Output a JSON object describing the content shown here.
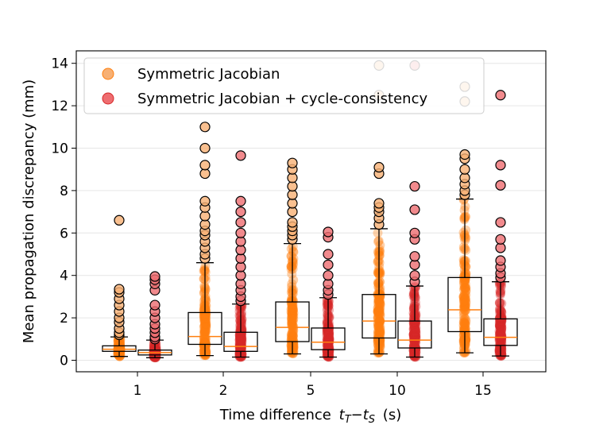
{
  "chart_data": {
    "type": "box",
    "title": "",
    "xlabel": "Time difference",
    "xlabel_math": {
      "t": "t",
      "sub_target": "T",
      "minus": "−",
      "sub_source": "S"
    },
    "xlabel_unit": "(s)",
    "ylabel": "Mean propagation discrepancy (mm)",
    "ylim": [
      -0.5,
      14.5
    ],
    "yticks": [
      0,
      2,
      4,
      6,
      8,
      10,
      12,
      14
    ],
    "grid": true,
    "legend_position": "top-left",
    "categories": [
      "1",
      "2",
      "5",
      "10",
      "15"
    ],
    "series": [
      {
        "name": "Symmetric Jacobian",
        "color": "#ff7f0e",
        "marker_face": "#f7b074",
        "boxes": [
          {
            "q1": 0.42,
            "median": 0.52,
            "q3": 0.68,
            "whisker_low": 0.18,
            "whisker_high": 1.1,
            "outliers": [
              1.2,
              1.3,
              1.5,
              1.8,
              2.0,
              2.3,
              2.6,
              2.9,
              3.2,
              3.35,
              6.6
            ]
          },
          {
            "q1": 0.75,
            "median": 1.12,
            "q3": 2.25,
            "whisker_low": 0.22,
            "whisker_high": 4.6,
            "outliers": [
              4.8,
              5.0,
              5.3,
              5.6,
              5.9,
              6.1,
              6.4,
              6.8,
              7.2,
              7.5,
              8.8,
              9.2,
              10.0,
              11.0
            ]
          },
          {
            "q1": 0.88,
            "median": 1.55,
            "q3": 2.75,
            "whisker_low": 0.3,
            "whisker_high": 5.5,
            "outliers": [
              5.7,
              5.9,
              6.1,
              6.3,
              6.5,
              7.0,
              7.4,
              7.8,
              8.2,
              8.6,
              9.0,
              9.3
            ]
          },
          {
            "q1": 1.05,
            "median": 1.85,
            "q3": 3.1,
            "whisker_low": 0.3,
            "whisker_high": 6.2,
            "outliers": [
              6.4,
              6.7,
              7.0,
              7.2,
              7.4,
              8.8,
              9.1,
              12.5,
              13.9
            ]
          },
          {
            "q1": 1.35,
            "median": 2.38,
            "q3": 3.9,
            "whisker_low": 0.35,
            "whisker_high": 7.6,
            "outliers": [
              7.8,
              8.0,
              8.3,
              8.6,
              9.0,
              9.5,
              9.7,
              12.2,
              12.9
            ]
          }
        ]
      },
      {
        "name": "Symmetric Jacobian + cycle-consistency",
        "color": "#d62728",
        "marker_face": "#ee6d70",
        "boxes": [
          {
            "q1": 0.25,
            "median": 0.36,
            "q3": 0.48,
            "whisker_low": 0.12,
            "whisker_high": 0.95,
            "outliers": [
              1.0,
              1.1,
              1.3,
              1.5,
              1.7,
              2.0,
              2.3,
              2.6,
              3.3,
              3.6,
              3.8,
              3.95
            ]
          },
          {
            "q1": 0.42,
            "median": 0.65,
            "q3": 1.32,
            "whisker_low": 0.15,
            "whisker_high": 2.65,
            "outliers": [
              2.8,
              3.0,
              3.3,
              3.6,
              4.0,
              4.4,
              4.8,
              5.2,
              5.6,
              6.0,
              6.5,
              7.0,
              7.5,
              9.65
            ]
          },
          {
            "q1": 0.5,
            "median": 0.85,
            "q3": 1.52,
            "whisker_low": 0.15,
            "whisker_high": 2.95,
            "outliers": [
              3.1,
              3.3,
              3.6,
              4.0,
              4.5,
              5.0,
              5.8,
              6.05
            ]
          },
          {
            "q1": 0.58,
            "median": 0.95,
            "q3": 1.85,
            "whisker_low": 0.15,
            "whisker_high": 3.5,
            "outliers": [
              3.7,
              4.0,
              4.5,
              4.9,
              5.7,
              6.0,
              7.1,
              8.2,
              13.9
            ]
          },
          {
            "q1": 0.7,
            "median": 1.08,
            "q3": 1.95,
            "whisker_low": 0.2,
            "whisker_high": 3.7,
            "outliers": [
              3.9,
              4.1,
              4.4,
              4.7,
              5.3,
              5.7,
              6.5,
              8.25,
              9.2,
              12.5
            ]
          }
        ]
      }
    ]
  }
}
